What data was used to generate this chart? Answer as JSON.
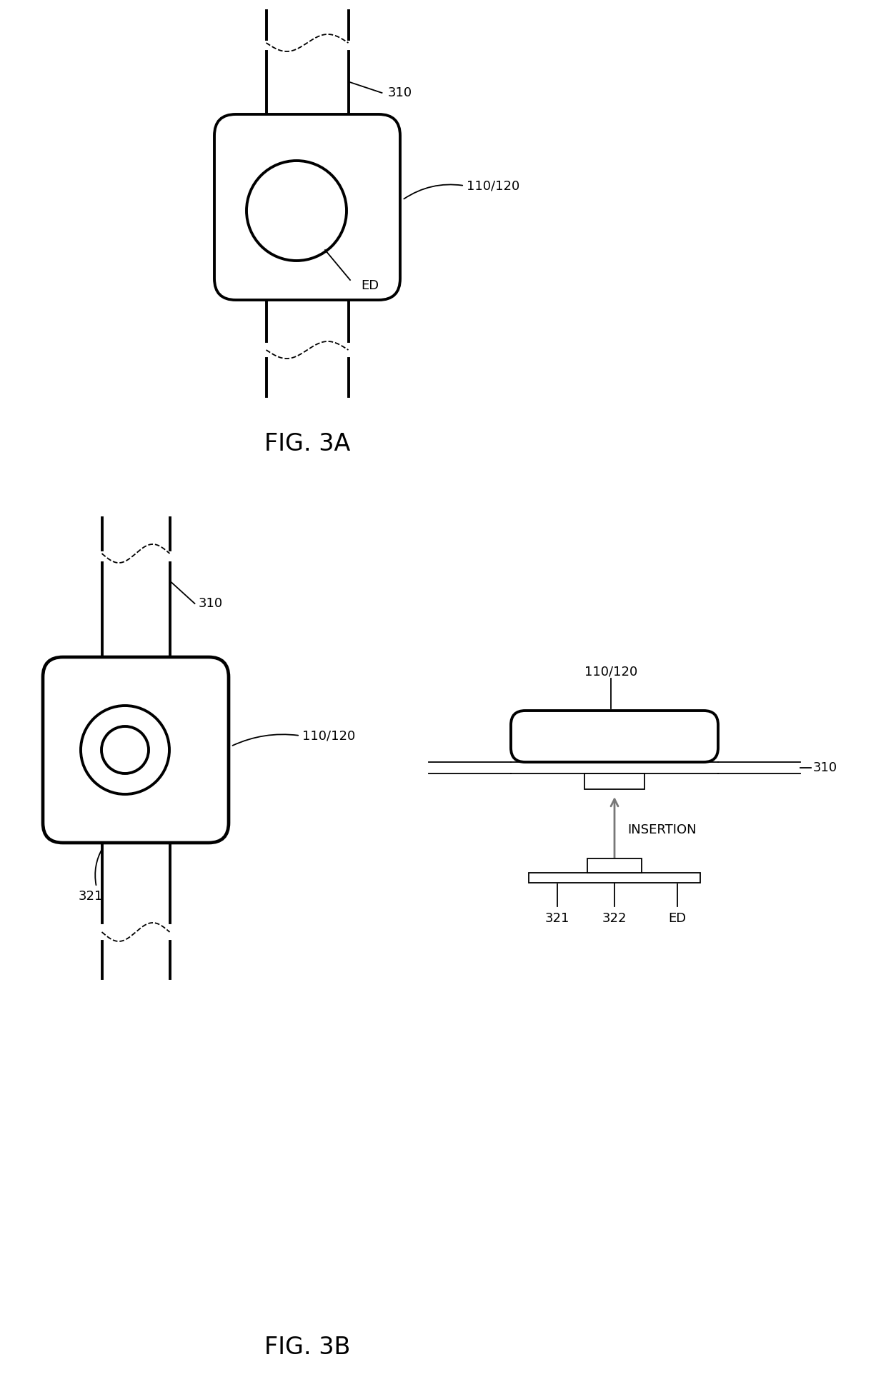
{
  "bg_color": "#ffffff",
  "line_color": "#000000",
  "fig3a_label": "FIG. 3A",
  "fig3b_label": "FIG. 3B",
  "label_310_a": "310",
  "label_110_120_a": "110/120",
  "label_ED_a": "ED",
  "label_310_b_left": "310",
  "label_110_120_b_left": "110/120",
  "label_321_b_left": "321",
  "label_310_right": "310",
  "label_110_120_right": "110/120",
  "label_321_right": "321",
  "label_322_right": "322",
  "label_ED_right": "ED",
  "label_insertion": "INSERTION",
  "font_size_label": 13,
  "font_size_fig": 24
}
